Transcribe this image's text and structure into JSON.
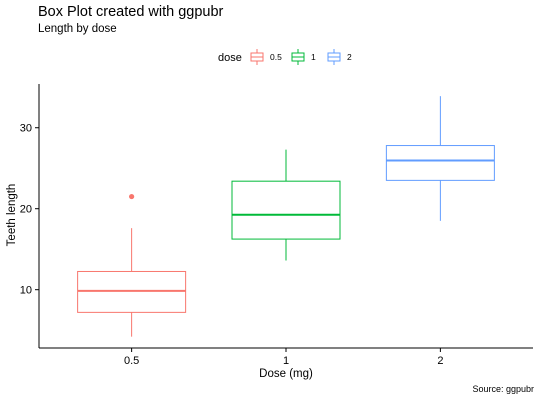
{
  "chart_data": {
    "type": "box",
    "title": "Box Plot created with ggpubr",
    "subtitle": "Length by dose",
    "caption": "Source: ggpubr",
    "xlabel": "Dose (mg)",
    "ylabel": "Teeth length",
    "legend": {
      "title": "dose",
      "position": "top"
    },
    "categories": [
      "0.5",
      "1",
      "2"
    ],
    "ylim": [
      2.8,
      35.4
    ],
    "yticks": [
      10,
      20,
      30
    ],
    "grid": false,
    "series": [
      {
        "name": "0.5",
        "color": "#F8766D",
        "min": 4.2,
        "q1": 7.2,
        "median": 9.85,
        "q3": 12.25,
        "max": 17.6,
        "outliers": [
          21.5
        ]
      },
      {
        "name": "1",
        "color": "#00BA38",
        "min": 13.6,
        "q1": 16.25,
        "median": 19.25,
        "q3": 23.4,
        "max": 27.3,
        "outliers": []
      },
      {
        "name": "2",
        "color": "#619CFF",
        "min": 18.5,
        "q1": 23.5,
        "median": 25.95,
        "q3": 27.8,
        "max": 33.9,
        "outliers": []
      }
    ]
  }
}
